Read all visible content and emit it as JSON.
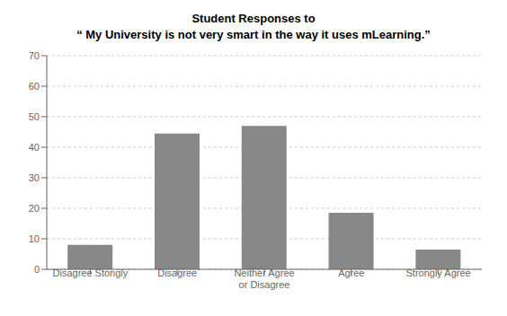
{
  "chart_data": {
    "type": "bar",
    "title": "Student Responses to\n“ My University is not very smart in the way it uses mLearning.”",
    "categories": [
      "Disagree Stongly",
      "Disagree",
      "Neither Agree\nor Disagree",
      "Agree",
      "Strongly Agree"
    ],
    "values": [
      8,
      44.5,
      47,
      18.5,
      6.5
    ],
    "color": "#888888",
    "ylim": [
      0,
      70
    ],
    "yticks": [
      0,
      10,
      20,
      30,
      40,
      50,
      60,
      70
    ],
    "grid": true
  }
}
